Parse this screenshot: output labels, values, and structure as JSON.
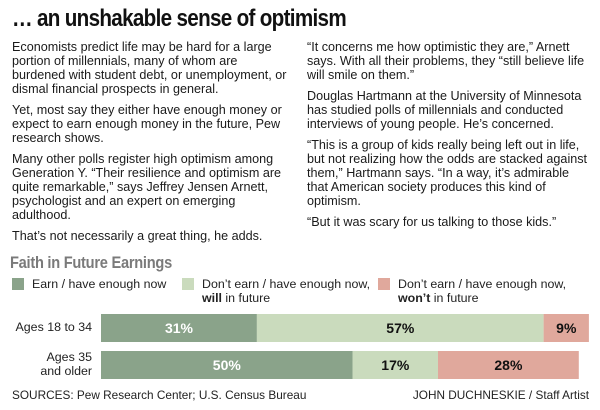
{
  "headline": "… an unshakable sense of optimism",
  "article": {
    "left_column": [
      "Economists predict life may be hard for a large portion of millennials, many of whom are burdened with student debt, or unemployment, or dismal financial prospects in general.",
      "Yet, most say they either have enough money or expect to earn enough money in the future, Pew research shows.",
      "Many other polls register high optimism among Generation Y. “Their resilience and optimism are quite remarkable,” says Jeffrey Jensen Arnett, psychologist and an expert on emerging adulthood.",
      "That’s not necessarily a great thing, he adds."
    ],
    "right_column": [
      "“It concerns me how optimistic they are,” Arnett says. With all their problems, they “still believe life will smile on them.”",
      "Douglas Hartmann at the University of Minnesota has studied polls of millennials and conducted interviews of young people. He’s concerned.",
      "“This is a group of kids really being left out in life, but not realizing how the odds are stacked against them,” Hartmann says. “In a way, it’s admirable that American society produces this kind of optimism.",
      "“But it was scary for us talking to those kids.”"
    ]
  },
  "chart_data": {
    "type": "bar",
    "orientation": "horizontal",
    "stacked": true,
    "title": "Faith in Future Earnings",
    "xlabel": "",
    "ylabel": "",
    "xlim": [
      0,
      100
    ],
    "grid": false,
    "legend_position": "top",
    "categories": [
      "Ages 18 to 34",
      "Ages 35 and older"
    ],
    "category_lines": [
      [
        "Ages 18 to 34"
      ],
      [
        "Ages 35",
        "and older"
      ]
    ],
    "series": [
      {
        "name": "Earn / have enough now",
        "legend_line1": "Earn / have enough now",
        "legend_line2_bold": "",
        "legend_line2_rest": "",
        "color": "#8aa38a",
        "label_color": "#ffffff",
        "values": [
          31,
          50
        ]
      },
      {
        "name": "Don’t earn / have enough now, will in future",
        "legend_line1": "Don’t earn / have enough now,",
        "legend_line2_bold": "will",
        "legend_line2_rest": " in future",
        "color": "#cadbbd",
        "label_color": "#111111",
        "values": [
          57,
          17
        ]
      },
      {
        "name": "Don’t earn / have enough now, won’t in future",
        "legend_line1": "Don’t earn / have enough now,",
        "legend_line2_bold": "won’t",
        "legend_line2_rest": " in future",
        "color": "#e0a89c",
        "label_color": "#111111",
        "values": [
          9,
          28
        ]
      }
    ],
    "value_suffix": "%"
  },
  "footer": {
    "sources": "SOURCES: Pew Research Center; U.S. Census Bureau",
    "credit": "JOHN DUCHNESKIE / Staff Artist"
  }
}
